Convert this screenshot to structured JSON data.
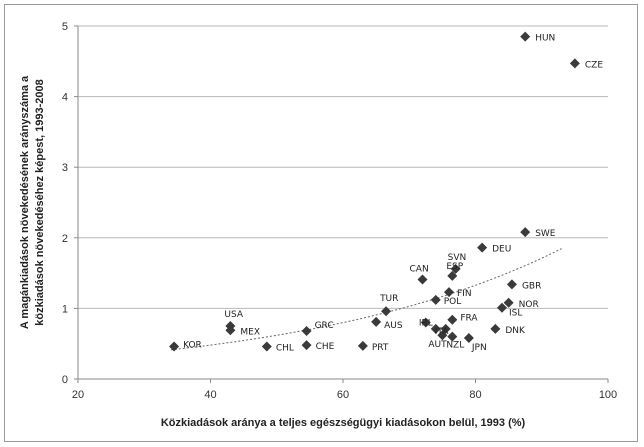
{
  "chart_data": {
    "type": "scatter",
    "title": "",
    "xlabel": "Közkiadások aránya a teljes egészségügyi kiadásokon belül, 1993 (%)",
    "ylabel_lines": [
      "A magánkiadások növekedésének arányszáma a",
      "közkiadások növekedéséhez képest, 1993-2008"
    ],
    "xlim": [
      20,
      100
    ],
    "ylim": [
      0,
      5
    ],
    "xticks": [
      "20",
      "40",
      "60",
      "80",
      "100"
    ],
    "yticks": [
      "0",
      "1",
      "2",
      "3",
      "4",
      "5"
    ],
    "grid": "horizontal",
    "legend": "none",
    "trendline": {
      "style": "dotted",
      "kind": "exponential",
      "x": [
        34,
        93
      ],
      "a": 0.174,
      "b": 0.0254
    },
    "series": [
      {
        "marker": "diamond",
        "color": "#3a3a3a",
        "points": [
          {
            "label": "HUN",
            "x": 87.5,
            "y": 4.85
          },
          {
            "label": "CZE",
            "x": 95,
            "y": 4.47
          },
          {
            "label": "SWE",
            "x": 87.5,
            "y": 2.08
          },
          {
            "label": "DEU",
            "x": 81,
            "y": 1.86
          },
          {
            "label": "CAN",
            "x": 72,
            "y": 1.41
          },
          {
            "label": "SVN",
            "x": 77,
            "y": 1.56
          },
          {
            "label": "ESP",
            "x": 76.5,
            "y": 1.46
          },
          {
            "label": "FIN",
            "x": 76,
            "y": 1.23
          },
          {
            "label": "GBR",
            "x": 85.5,
            "y": 1.34
          },
          {
            "label": "TUR",
            "x": 66.5,
            "y": 0.96
          },
          {
            "label": "POL",
            "x": 74,
            "y": 1.12
          },
          {
            "label": "NOR",
            "x": 85,
            "y": 1.08
          },
          {
            "label": "ISL",
            "x": 84,
            "y": 1.01
          },
          {
            "label": "USA",
            "x": 43,
            "y": 0.75
          },
          {
            "label": "MEX",
            "x": 43,
            "y": 0.69
          },
          {
            "label": "GRC",
            "x": 54.5,
            "y": 0.68
          },
          {
            "label": "AUS",
            "x": 65,
            "y": 0.81
          },
          {
            "label": "FRA",
            "x": 76.5,
            "y": 0.84
          },
          {
            "label": "IRL",
            "x": 72.5,
            "y": 0.8
          },
          {
            "label": "ITA",
            "x": 74,
            "y": 0.71
          },
          {
            "label": "",
            "x": 75.5,
            "y": 0.71
          },
          {
            "label": "DNK",
            "x": 83,
            "y": 0.71
          },
          {
            "label": "AUT",
            "x": 75,
            "y": 0.62
          },
          {
            "label": "NZL",
            "x": 76.5,
            "y": 0.6
          },
          {
            "label": "JPN",
            "x": 79,
            "y": 0.58
          },
          {
            "label": "KOR",
            "x": 34.5,
            "y": 0.46
          },
          {
            "label": "CHL",
            "x": 48.5,
            "y": 0.46
          },
          {
            "label": "CHE",
            "x": 54.5,
            "y": 0.48
          },
          {
            "label": "PRT",
            "x": 63,
            "y": 0.47
          }
        ]
      }
    ]
  }
}
